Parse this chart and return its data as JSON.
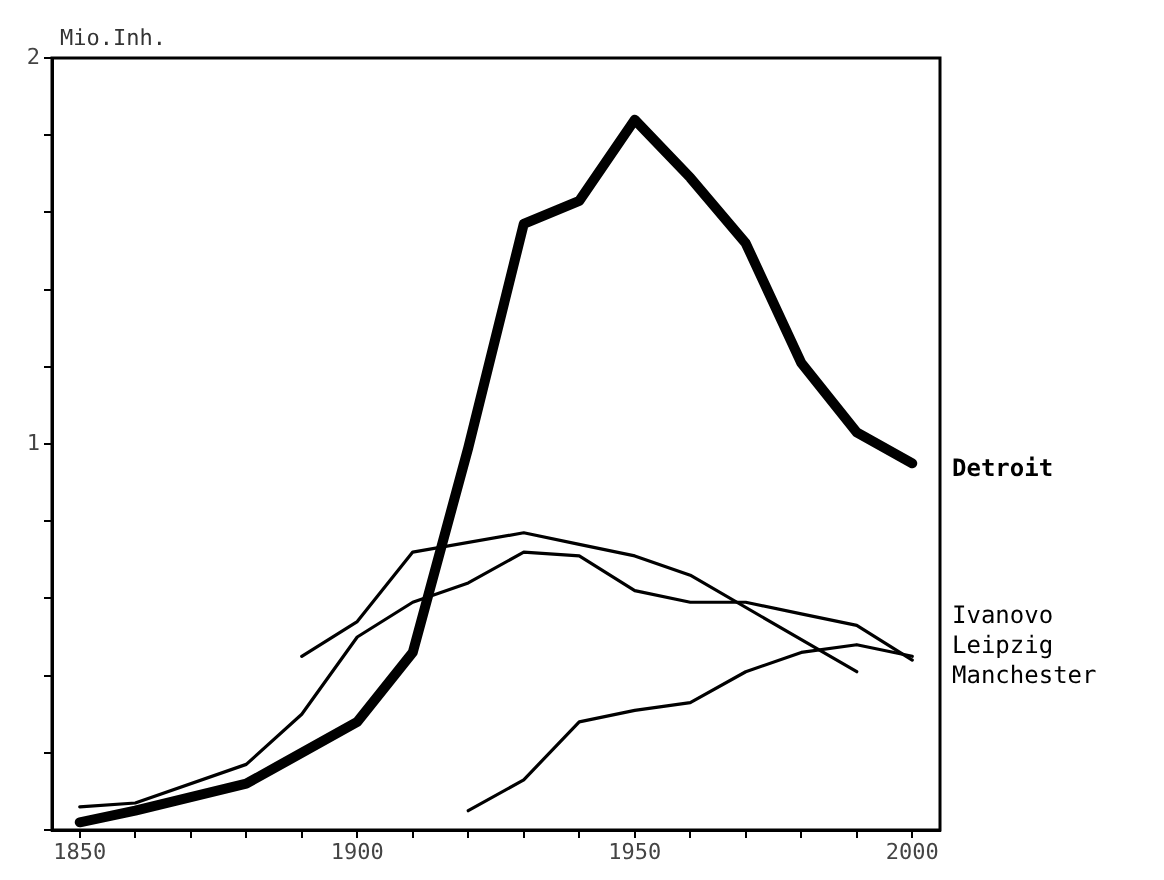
{
  "chart_data": {
    "type": "line",
    "ylabel": "Mio.Inh.",
    "xlim": [
      1845,
      2005
    ],
    "ylim": [
      0,
      2
    ],
    "xticks": [
      1850,
      {
        "value": 1860,
        "label": null
      },
      {
        "value": 1870,
        "label": null
      },
      {
        "value": 1880,
        "label": null
      },
      {
        "value": 1890,
        "label": null
      },
      1900,
      {
        "value": 1910,
        "label": null
      },
      {
        "value": 1920,
        "label": null
      },
      {
        "value": 1930,
        "label": null
      },
      {
        "value": 1940,
        "label": null
      },
      1950,
      {
        "value": 1960,
        "label": null
      },
      {
        "value": 1970,
        "label": null
      },
      {
        "value": 1980,
        "label": null
      },
      {
        "value": 1990,
        "label": null
      },
      2000
    ],
    "yticks": [
      {
        "value": 0,
        "label": null
      },
      {
        "value": 0.2,
        "label": null
      },
      {
        "value": 0.4,
        "label": null
      },
      {
        "value": 0.6,
        "label": null
      },
      {
        "value": 0.8,
        "label": null
      },
      1,
      {
        "value": 1.2,
        "label": null
      },
      {
        "value": 1.4,
        "label": null
      },
      {
        "value": 1.6,
        "label": null
      },
      {
        "value": 1.8,
        "label": null
      },
      2
    ],
    "marker": "none",
    "line_style": "solid",
    "series": [
      {
        "name": "Detroit",
        "color": "#000000",
        "x": [
          1850,
          1860,
          1880,
          1900,
          1910,
          1920,
          1930,
          1940,
          1950,
          1960,
          1970,
          1980,
          1990,
          2000
        ],
        "values": [
          0.02,
          0.05,
          0.12,
          0.28,
          0.46,
          0.99,
          1.57,
          1.63,
          1.84,
          1.69,
          1.52,
          1.21,
          1.03,
          0.95
        ]
      },
      {
        "name": "Ivanovo",
        "color": "#000000",
        "x": [
          1920,
          1930,
          1940,
          1950,
          1960,
          1970,
          1980,
          1990,
          2000
        ],
        "values": [
          0.05,
          0.13,
          0.28,
          0.31,
          0.33,
          0.41,
          0.46,
          0.48,
          0.45
        ]
      },
      {
        "name": "Leipzig",
        "color": "#000000",
        "x": [
          1850,
          1860,
          1880,
          1890,
          1900,
          1910,
          1920,
          1930,
          1940,
          1950,
          1960,
          1970,
          1980,
          1990,
          2000
        ],
        "values": [
          0.06,
          0.07,
          0.17,
          0.3,
          0.5,
          0.59,
          0.64,
          0.72,
          0.71,
          0.62,
          0.59,
          0.59,
          0.56,
          0.53,
          0.44
        ]
      },
      {
        "name": "Manchester",
        "color": "#000000",
        "x": [
          1890,
          1900,
          1910,
          1930,
          1940,
          1950,
          1960,
          1990
        ],
        "values": [
          0.45,
          0.54,
          0.72,
          0.77,
          0.74,
          0.71,
          0.66,
          0.41
        ]
      }
    ]
  }
}
